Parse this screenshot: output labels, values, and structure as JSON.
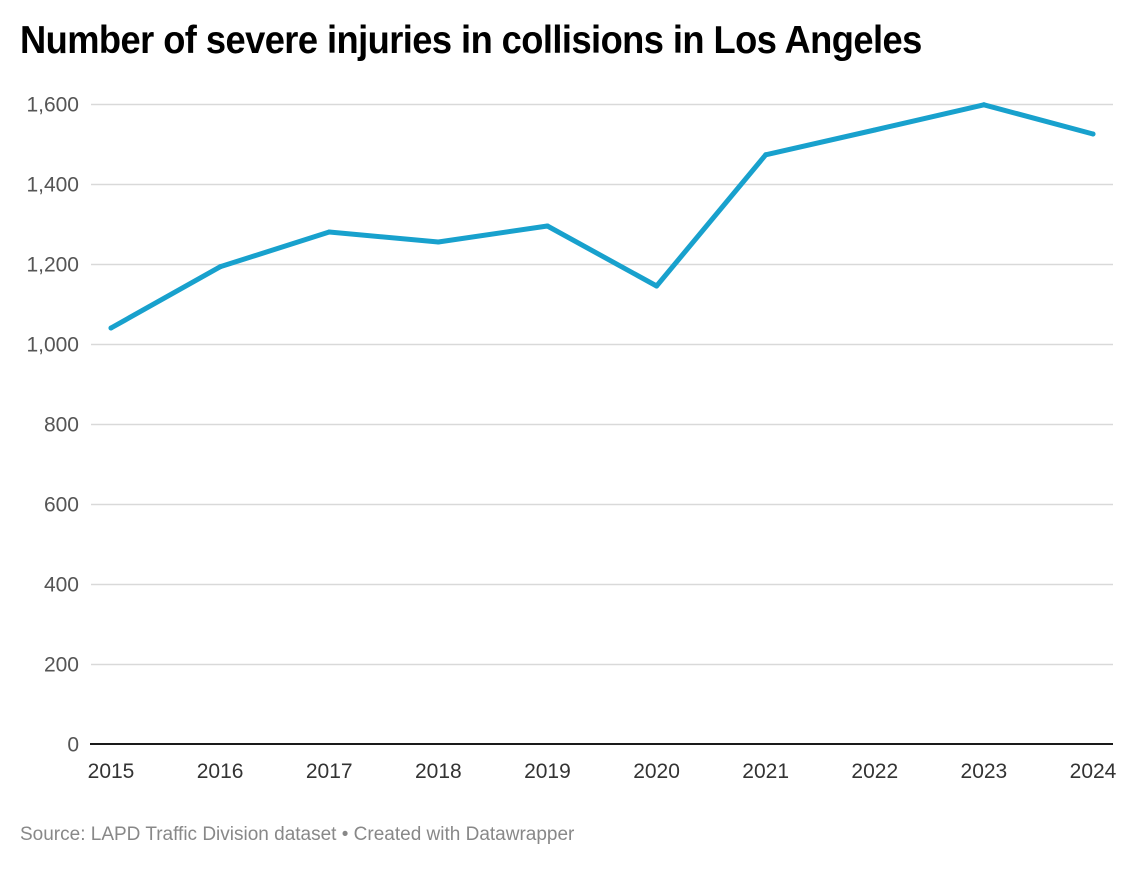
{
  "chart_data": {
    "type": "line",
    "title": "Number of severe injuries in collisions in Los Angeles",
    "xlabel": "",
    "ylabel": "",
    "categories": [
      "2015",
      "2016",
      "2017",
      "2018",
      "2019",
      "2020",
      "2021",
      "2022",
      "2023",
      "2024"
    ],
    "series": [
      {
        "name": "Severe injuries",
        "color": "#18a1cd",
        "values": [
          1040,
          1193,
          1280,
          1255,
          1295,
          1145,
          1473,
          1535,
          1598,
          1525
        ]
      }
    ],
    "ylim": [
      0,
      1600
    ],
    "y_ticks": [
      0,
      200,
      400,
      600,
      800,
      1000,
      1200,
      1400,
      1600
    ],
    "y_tick_labels": [
      "0",
      "200",
      "400",
      "600",
      "800",
      "1,000",
      "1,200",
      "1,400",
      "1,600"
    ],
    "grid": true,
    "legend": "none"
  },
  "footer": {
    "source_label": "Source:",
    "source_name": "LAPD Traffic Division dataset",
    "separator": "•",
    "credit": "Created with Datawrapper",
    "full_text": "Source: LAPD Traffic Division dataset • Created with Datawrapper"
  },
  "colors": {
    "line": "#18a1cd",
    "grid": "#d9d9d9",
    "baseline": "#1a1a1a",
    "tick_text": "#555555",
    "footer_text": "#888888"
  }
}
